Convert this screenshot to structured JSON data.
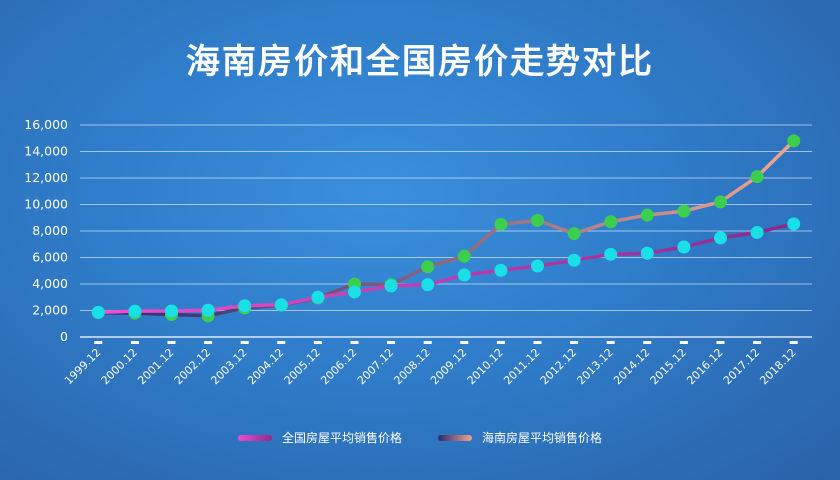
{
  "chart_data": {
    "type": "line",
    "title": "海南房价和全国房价走势对比",
    "categories": [
      "1999.12",
      "2000.12",
      "2001.12",
      "2002.12",
      "2003.12",
      "2004.12",
      "2005.12",
      "2006.12",
      "2007.12",
      "2008.12",
      "2009.12",
      "2010.12",
      "2011.12",
      "2012.12",
      "2013.12",
      "2014.12",
      "2015.12",
      "2016.12",
      "2017.12",
      "2018.12"
    ],
    "yticks": [
      "0",
      "2,000",
      "4,000",
      "6,000",
      "8,000",
      "10,000",
      "12,000",
      "14,000",
      "16,000"
    ],
    "ylim": [
      0,
      16000
    ],
    "grid": true,
    "legend_position": "bottom",
    "series": [
      {
        "name": "全国房屋平均销售价格",
        "line_colors": [
          "#e040c0",
          "#8a2a8a"
        ],
        "marker_color": "#19e0e6",
        "values": [
          1860,
          1950,
          1960,
          2020,
          2360,
          2430,
          3000,
          3400,
          3860,
          3940,
          4680,
          5030,
          5360,
          5790,
          6240,
          6320,
          6790,
          7480,
          7890,
          8540
        ]
      },
      {
        "name": "海南房屋平均销售价格",
        "line_colors": [
          "#3a2f7a",
          "#f0a088"
        ],
        "marker_color": "#3ccf4e",
        "values": [
          1850,
          1800,
          1700,
          1600,
          2200,
          2400,
          2950,
          4000,
          3950,
          5300,
          6100,
          8500,
          8800,
          7800,
          8700,
          9200,
          9500,
          10200,
          12100,
          14800
        ]
      }
    ]
  }
}
